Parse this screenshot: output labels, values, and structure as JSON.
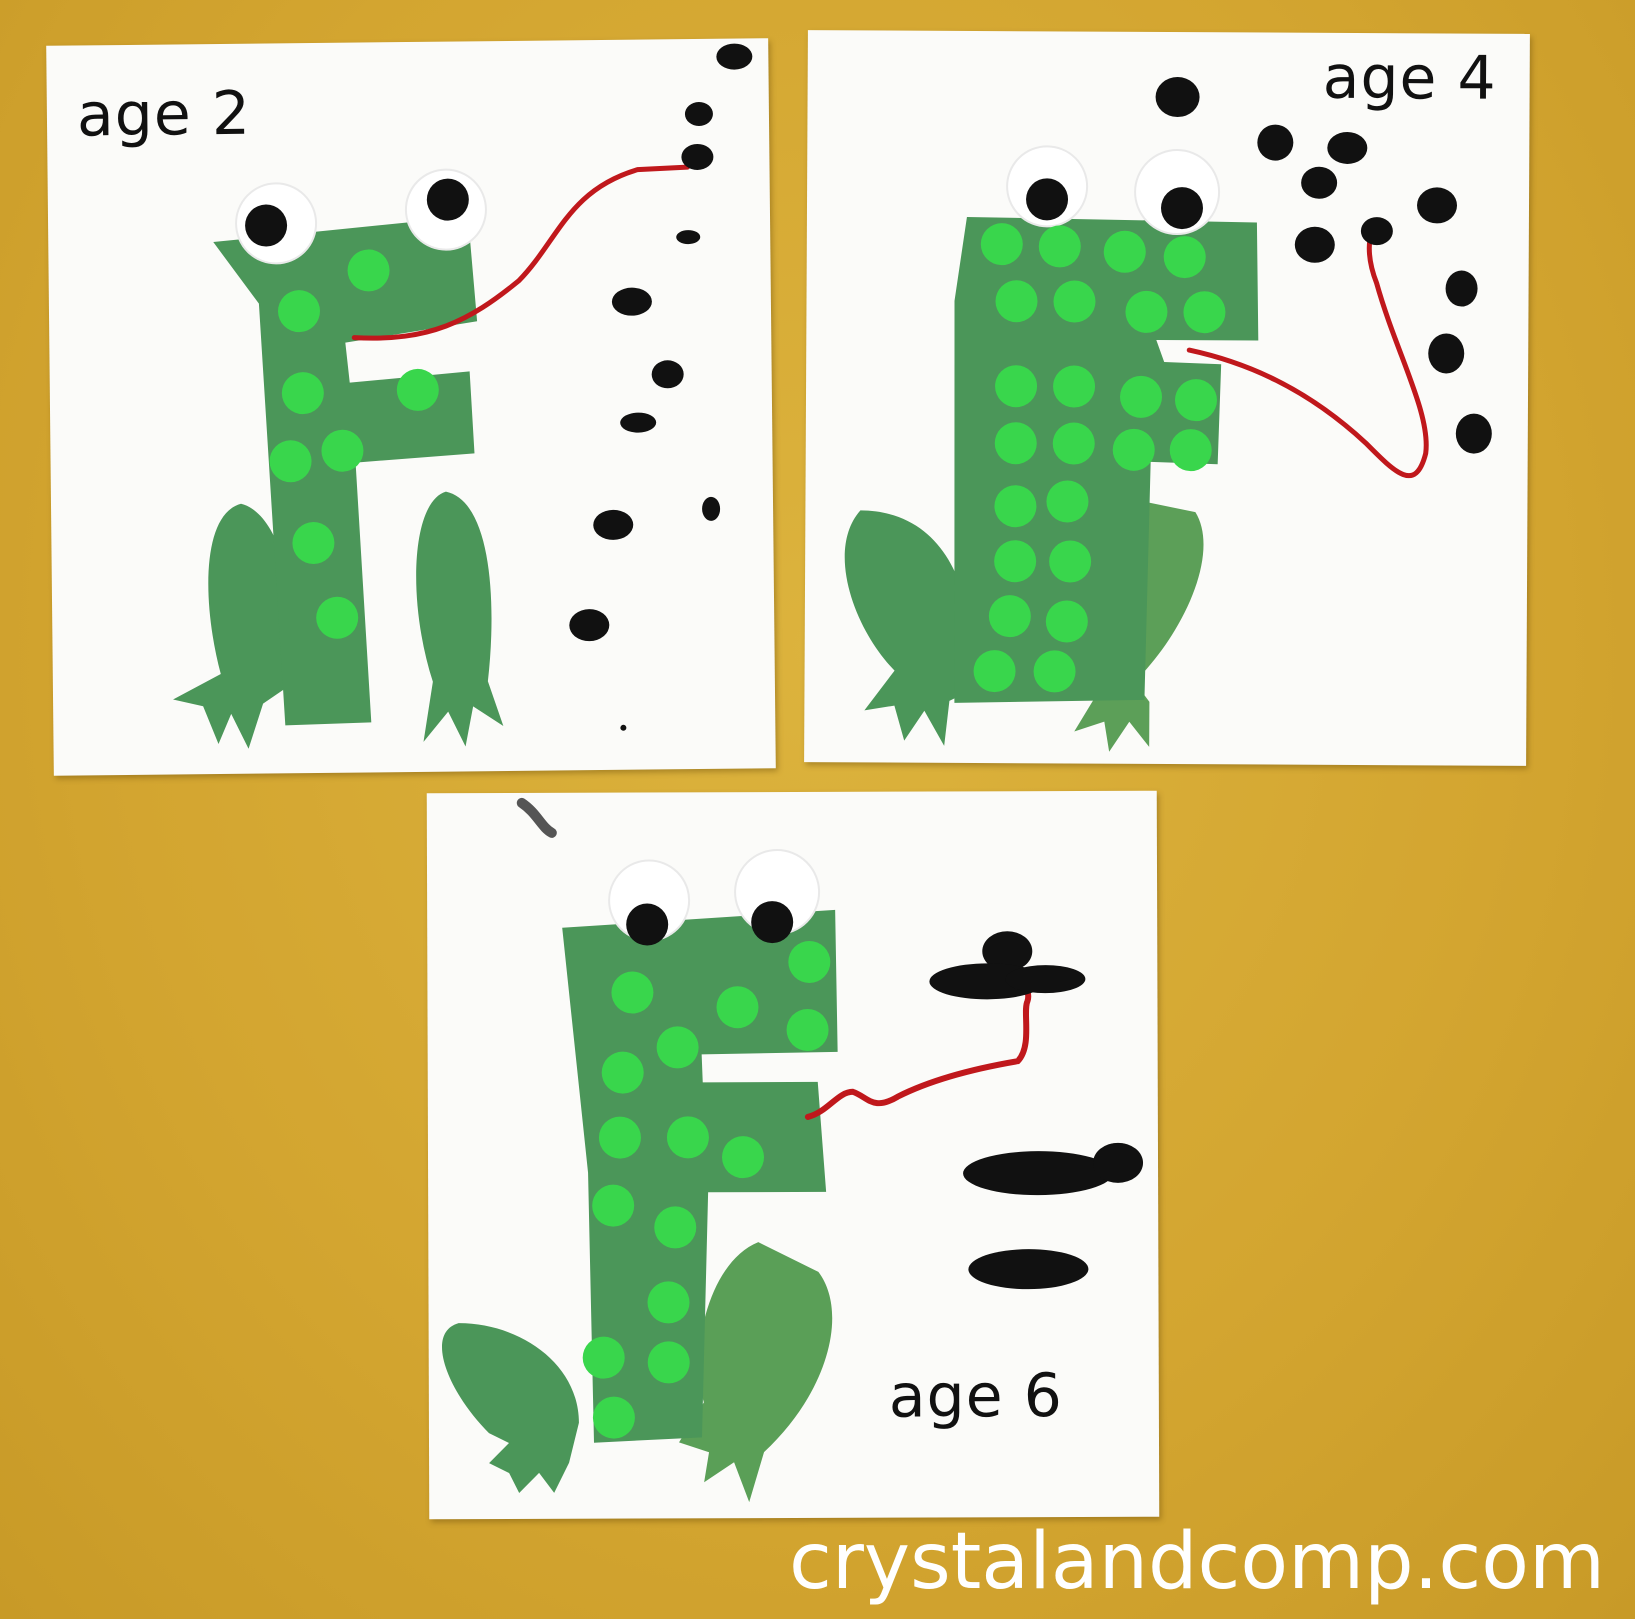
{
  "labels": {
    "craft1": "age 2",
    "craft2": "age 4",
    "craft3": "age 6"
  },
  "watermark": "crystalandcomp.com",
  "colors": {
    "wall": "#d7ab34",
    "paper": "#fbfbf9",
    "frog_green": "#4b9659",
    "dot_green": "#39d64c",
    "yarn_red": "#c0181c",
    "fly_black": "#111111"
  }
}
